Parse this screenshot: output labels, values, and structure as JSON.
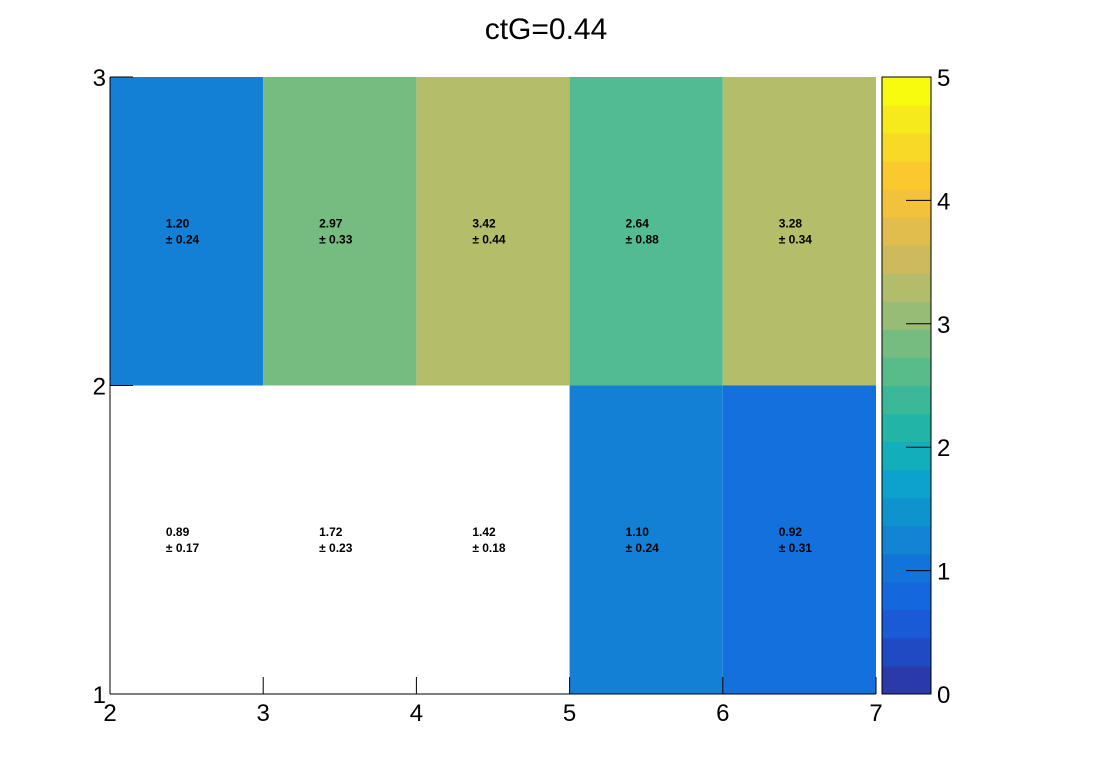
{
  "chart_data": {
    "type": "heatmap",
    "title": "ctG=0.44",
    "xlabel": "",
    "ylabel": "",
    "xlim": [
      2,
      7
    ],
    "ylim": [
      1,
      3
    ],
    "x_bin_edges": [
      2,
      3,
      4,
      5,
      6,
      7
    ],
    "y_bin_edges": [
      1,
      2,
      3
    ],
    "x_tick_labels": [
      "2",
      "3",
      "4",
      "5",
      "6",
      "7"
    ],
    "y_tick_labels": [
      "1",
      "2",
      "3"
    ],
    "colorbar": {
      "min": 0,
      "max": 5,
      "tick_labels": [
        "0",
        "1",
        "2",
        "3",
        "4",
        "5"
      ],
      "palette": [
        "#2a3aa8",
        "#1e4bc4",
        "#1a5ad6",
        "#1467dc",
        "#1273d8",
        "#1284d2",
        "#0f93cf",
        "#0ca2cd",
        "#12aebc",
        "#21b4a7",
        "#3bb897",
        "#58bb8a",
        "#76bb80",
        "#97bc76",
        "#b3bc6a",
        "#ccba5c",
        "#e0bd4c",
        "#f2c23d",
        "#fbc92e",
        "#f8d925",
        "#f6ea1d",
        "#f9fb0e"
      ]
    },
    "cells": [
      {
        "x": [
          2,
          3
        ],
        "y": [
          1,
          2
        ],
        "value": "0.89",
        "error": "± 0.17",
        "color": "#ffffff"
      },
      {
        "x": [
          3,
          4
        ],
        "y": [
          1,
          2
        ],
        "value": "1.72",
        "error": "± 0.23",
        "color": "#ffffff"
      },
      {
        "x": [
          4,
          5
        ],
        "y": [
          1,
          2
        ],
        "value": "1.42",
        "error": "± 0.18",
        "color": "#ffffff"
      },
      {
        "x": [
          5,
          6
        ],
        "y": [
          1,
          2
        ],
        "value": "1.10",
        "error": "± 0.24",
        "color": "#1380d6"
      },
      {
        "x": [
          6,
          7
        ],
        "y": [
          1,
          2
        ],
        "value": "0.92",
        "error": "± 0.31",
        "color": "#1370dc"
      },
      {
        "x": [
          2,
          3
        ],
        "y": [
          2,
          3
        ],
        "value": "1.20",
        "error": "± 0.24",
        "color": "#1380d6"
      },
      {
        "x": [
          3,
          4
        ],
        "y": [
          2,
          3
        ],
        "value": "2.97",
        "error": "± 0.33",
        "color": "#76bc80"
      },
      {
        "x": [
          4,
          5
        ],
        "y": [
          2,
          3
        ],
        "value": "3.42",
        "error": "± 0.44",
        "color": "#b3bd6a"
      },
      {
        "x": [
          5,
          6
        ],
        "y": [
          2,
          3
        ],
        "value": "2.64",
        "error": "± 0.88",
        "color": "#53bb94"
      },
      {
        "x": [
          6,
          7
        ],
        "y": [
          2,
          3
        ],
        "value": "3.28",
        "error": "± 0.34",
        "color": "#b3bd6a"
      }
    ]
  }
}
